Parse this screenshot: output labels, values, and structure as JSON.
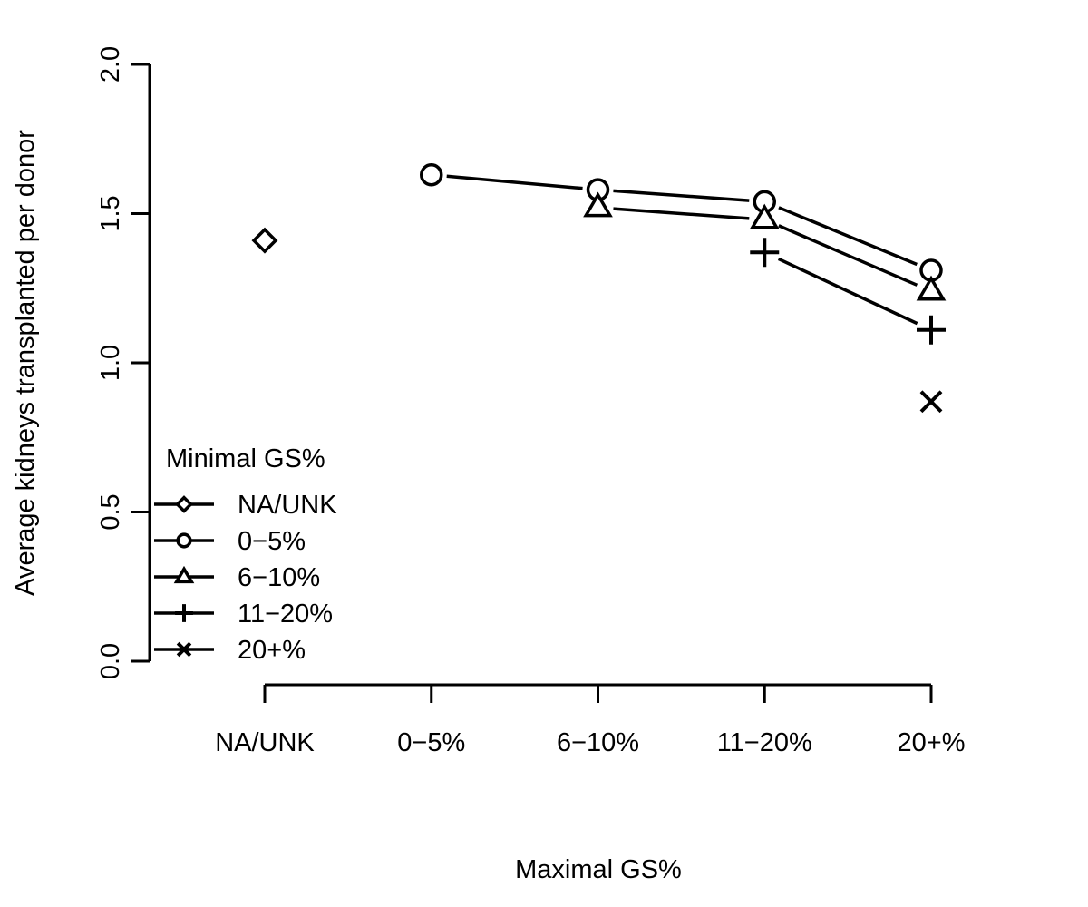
{
  "chart_data": {
    "type": "line",
    "xlabel": "Maximal GS%",
    "ylabel": "Average kidneys transplanted per donor",
    "categories": [
      "NA/UNK",
      "0−5%",
      "6−10%",
      "11−20%",
      "20+%"
    ],
    "ylim": [
      0,
      2
    ],
    "yticks": [
      "0.0",
      "0.5",
      "1.0",
      "1.5",
      "2.0"
    ],
    "grid": false,
    "legend": {
      "title": "Minimal GS%",
      "position": "bottom-left",
      "entries": [
        "NA/UNK",
        "0−5%",
        "6−10%",
        "11−20%",
        "20+%"
      ]
    },
    "series": [
      {
        "name": "NA/UNK",
        "marker": "diamond",
        "values": [
          1.41,
          null,
          null,
          null,
          null
        ]
      },
      {
        "name": "0−5%",
        "marker": "circle",
        "values": [
          null,
          1.63,
          1.58,
          1.54,
          1.31
        ]
      },
      {
        "name": "6−10%",
        "marker": "triangle",
        "values": [
          null,
          null,
          1.52,
          1.48,
          1.24
        ]
      },
      {
        "name": "11−20%",
        "marker": "plus",
        "values": [
          null,
          null,
          null,
          1.37,
          1.11
        ]
      },
      {
        "name": "20+%",
        "marker": "cross",
        "values": [
          null,
          null,
          null,
          null,
          0.87
        ]
      }
    ],
    "colors": {
      "ink": "#000000",
      "background": "#ffffff"
    }
  }
}
